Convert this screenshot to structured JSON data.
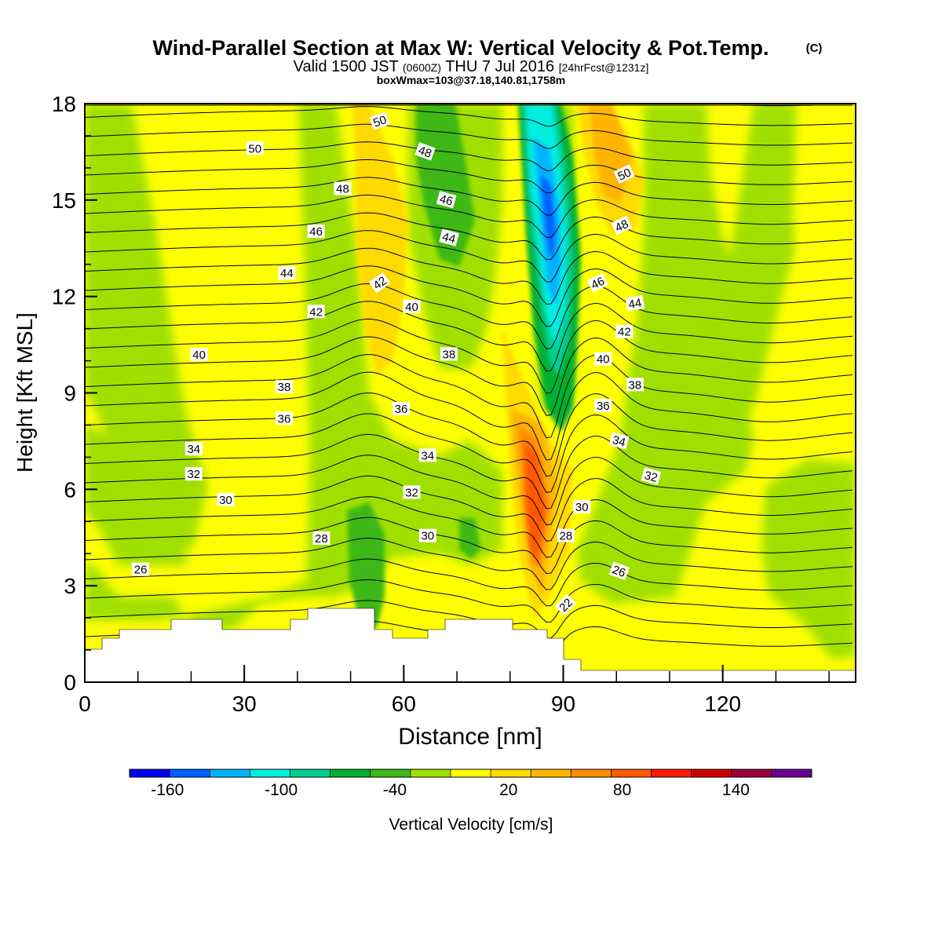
{
  "header": {
    "title": "Wind-Parallel Section at Max W: Vertical Velocity & Pot.Temp.",
    "copyright": "(C)",
    "valid_prefix": "Valid 1500 JST",
    "valid_utc": "(0600Z)",
    "valid_date": "THU 7 Jul 2016",
    "forecast_info": "[24hrFcst@1231z]",
    "box_info": "boxWmax=103@37.18,140.81,1758m"
  },
  "chart_data": {
    "type": "heatmap",
    "xlabel": "Distance [nm]",
    "ylabel": "Height [Kft MSL]",
    "xlim": [
      0,
      145
    ],
    "ylim": [
      0,
      18
    ],
    "x_ticks": [
      0,
      30,
      60,
      90,
      120
    ],
    "y_ticks": [
      0,
      3,
      6,
      9,
      12,
      15,
      18
    ],
    "x_minor_step": 10,
    "y_minor_step": 1,
    "colorbar": {
      "label": "Vertical Velocity [cm/s]",
      "min": -180,
      "max": 180,
      "step": 20,
      "tick_values": [
        -160,
        -100,
        -40,
        20,
        80,
        140
      ],
      "colors": [
        "#0000ee",
        "#0060ff",
        "#00b4ff",
        "#00eee0",
        "#00d090",
        "#00b030",
        "#3cb818",
        "#a0e000",
        "#ffff00",
        "#ffda00",
        "#ffb400",
        "#ff8c00",
        "#ff5a00",
        "#ff1a00",
        "#cc0000",
        "#99003c",
        "#680090"
      ]
    },
    "theta_contour_labels": [
      {
        "text": "50",
        "x": 32,
        "y": 16.6,
        "angle": 0
      },
      {
        "text": "48",
        "x": 48.5,
        "y": 15.35,
        "angle": 0
      },
      {
        "text": "46",
        "x": 43.5,
        "y": 14.02,
        "angle": 0
      },
      {
        "text": "44",
        "x": 38,
        "y": 12.72,
        "angle": 0
      },
      {
        "text": "42",
        "x": 43.5,
        "y": 11.52,
        "angle": 0
      },
      {
        "text": "40",
        "x": 21.5,
        "y": 10.18,
        "angle": 0
      },
      {
        "text": "38",
        "x": 37.5,
        "y": 9.18,
        "angle": 0
      },
      {
        "text": "36",
        "x": 37.5,
        "y": 8.2,
        "angle": 0
      },
      {
        "text": "34",
        "x": 20.5,
        "y": 7.25,
        "angle": 0
      },
      {
        "text": "32",
        "x": 20.5,
        "y": 6.47,
        "angle": 0
      },
      {
        "text": "30",
        "x": 26.5,
        "y": 5.67,
        "angle": 0
      },
      {
        "text": "28",
        "x": 44.5,
        "y": 4.47,
        "angle": 0
      },
      {
        "text": "26",
        "x": 10.5,
        "y": 3.5,
        "angle": 0
      },
      {
        "text": "50",
        "x": 55.5,
        "y": 17.45,
        "angle": -20
      },
      {
        "text": "48",
        "x": 64,
        "y": 16.5,
        "angle": 20
      },
      {
        "text": "46",
        "x": 68,
        "y": 15.0,
        "angle": 15
      },
      {
        "text": "44",
        "x": 68.5,
        "y": 13.82,
        "angle": 15
      },
      {
        "text": "42",
        "x": 55.5,
        "y": 12.42,
        "angle": -35
      },
      {
        "text": "40",
        "x": 61.5,
        "y": 11.68,
        "angle": 0
      },
      {
        "text": "38",
        "x": 68.5,
        "y": 10.2,
        "angle": 0
      },
      {
        "text": "36",
        "x": 59.5,
        "y": 8.5,
        "angle": 0
      },
      {
        "text": "34",
        "x": 64.5,
        "y": 7.05,
        "angle": 0
      },
      {
        "text": "32",
        "x": 61.5,
        "y": 5.9,
        "angle": 0
      },
      {
        "text": "30",
        "x": 64.5,
        "y": 4.55,
        "angle": 0
      },
      {
        "text": "50",
        "x": 101.5,
        "y": 15.8,
        "angle": -25
      },
      {
        "text": "48",
        "x": 101,
        "y": 14.2,
        "angle": -25
      },
      {
        "text": "46",
        "x": 96.5,
        "y": 12.42,
        "angle": -25
      },
      {
        "text": "44",
        "x": 103.5,
        "y": 11.78,
        "angle": -10
      },
      {
        "text": "42",
        "x": 101.5,
        "y": 10.9,
        "angle": 0
      },
      {
        "text": "40",
        "x": 97.5,
        "y": 10.05,
        "angle": 0
      },
      {
        "text": "38",
        "x": 103.5,
        "y": 9.25,
        "angle": 0
      },
      {
        "text": "36",
        "x": 97.5,
        "y": 8.6,
        "angle": 0
      },
      {
        "text": "34",
        "x": 100.5,
        "y": 7.5,
        "angle": 15
      },
      {
        "text": "32",
        "x": 106.5,
        "y": 6.4,
        "angle": 15
      },
      {
        "text": "30",
        "x": 93.5,
        "y": 5.45,
        "angle": 0
      },
      {
        "text": "28",
        "x": 90.5,
        "y": 4.55,
        "angle": 0
      },
      {
        "text": "26",
        "x": 100.5,
        "y": 3.45,
        "angle": 20
      },
      {
        "text": "22",
        "x": 90.5,
        "y": 2.4,
        "angle": -45
      }
    ]
  }
}
